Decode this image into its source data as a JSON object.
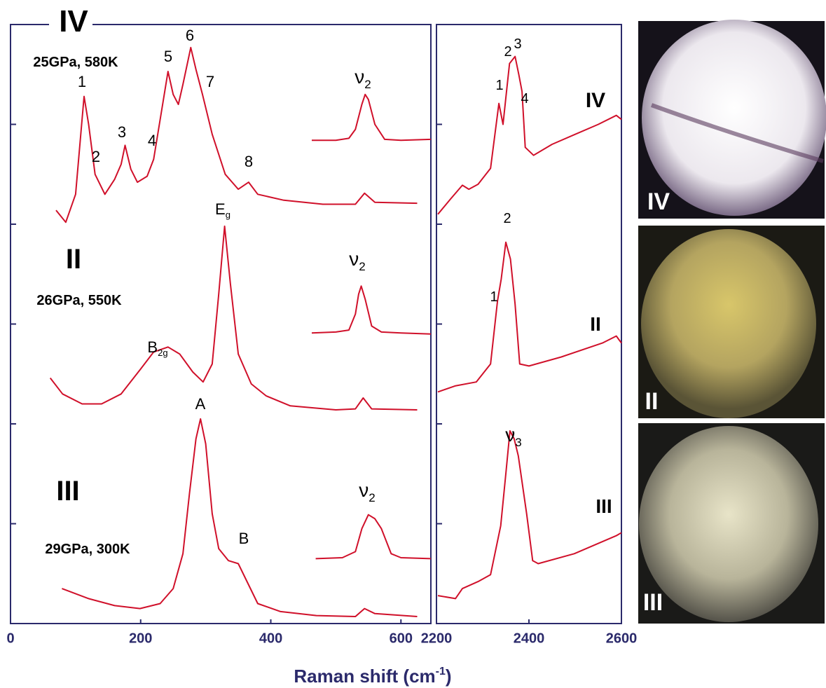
{
  "x_label": {
    "text": "Raman shift (cm",
    "sup": "-1",
    "end": ")"
  },
  "chart_data": [
    {
      "type": "line",
      "xlim": [
        0,
        646
      ],
      "xticks": [
        0,
        200,
        400,
        600
      ],
      "ylim": [
        0,
        6
      ],
      "yticks": [
        1,
        2,
        3,
        4,
        5
      ],
      "series": [
        {
          "color": "#d0102a",
          "x": [
            70,
            85,
            100,
            108,
            113,
            120,
            130,
            145,
            160,
            170,
            176,
            185,
            195,
            210,
            220,
            235,
            242,
            250,
            258,
            265,
            277,
            285,
            295,
            310,
            330,
            350,
            366,
            380,
            420,
            480,
            530,
            544,
            560,
            625
          ],
          "values": [
            4.14,
            4.02,
            4.3,
            4.9,
            5.28,
            5.0,
            4.5,
            4.3,
            4.45,
            4.6,
            4.79,
            4.55,
            4.42,
            4.48,
            4.65,
            5.25,
            5.53,
            5.3,
            5.2,
            5.4,
            5.77,
            5.55,
            5.3,
            4.9,
            4.5,
            4.35,
            4.42,
            4.3,
            4.24,
            4.2,
            4.2,
            4.31,
            4.22,
            4.21
          ]
        },
        {
          "color": "#d0102a",
          "x": [
            463,
            500,
            520,
            530,
            540,
            545,
            550,
            560,
            575,
            600,
            646
          ],
          "values": [
            4.84,
            4.84,
            4.86,
            4.95,
            5.2,
            5.3,
            5.25,
            5.0,
            4.85,
            4.84,
            4.85
          ]
        },
        {
          "color": "#d0102a",
          "x": [
            61,
            80,
            110,
            140,
            170,
            200,
            220,
            242,
            260,
            280,
            296,
            310,
            320,
            329,
            338,
            350,
            370,
            393,
            430,
            500,
            530,
            542,
            555,
            625
          ],
          "values": [
            2.46,
            2.3,
            2.2,
            2.2,
            2.3,
            2.55,
            2.72,
            2.77,
            2.7,
            2.52,
            2.42,
            2.6,
            3.3,
            3.98,
            3.4,
            2.7,
            2.4,
            2.28,
            2.18,
            2.14,
            2.15,
            2.26,
            2.15,
            2.14
          ]
        },
        {
          "color": "#d0102a",
          "x": [
            463,
            500,
            520,
            530,
            535,
            539,
            545,
            555,
            570,
            600,
            646
          ],
          "values": [
            2.91,
            2.92,
            2.94,
            3.1,
            3.3,
            3.38,
            3.25,
            2.98,
            2.92,
            2.91,
            2.9
          ]
        },
        {
          "color": "#d0102a",
          "x": [
            79,
            120,
            160,
            199,
            230,
            250,
            265,
            275,
            285,
            292,
            300,
            310,
            320,
            335,
            350,
            365,
            380,
            415,
            470,
            530,
            544,
            560,
            625
          ],
          "values": [
            0.35,
            0.25,
            0.18,
            0.15,
            0.2,
            0.35,
            0.7,
            1.3,
            1.85,
            2.05,
            1.8,
            1.1,
            0.75,
            0.63,
            0.6,
            0.4,
            0.2,
            0.12,
            0.08,
            0.07,
            0.15,
            0.1,
            0.07
          ]
        },
        {
          "color": "#d0102a",
          "x": [
            469,
            510,
            530,
            540,
            550,
            560,
            570,
            585,
            600,
            646
          ],
          "values": [
            0.65,
            0.66,
            0.72,
            0.95,
            1.09,
            1.05,
            0.95,
            0.7,
            0.66,
            0.65
          ]
        }
      ],
      "annotations": [
        {
          "text": "IV"
        },
        {
          "text": "25GPa, 580K"
        },
        {
          "text": "1"
        },
        {
          "text": "2"
        },
        {
          "text": "3"
        },
        {
          "text": "4"
        },
        {
          "text": "5"
        },
        {
          "text": "6"
        },
        {
          "text": "7"
        },
        {
          "text": "8"
        },
        {
          "base": "ν",
          "sub": "2"
        },
        {
          "base": "ν",
          "sub": "2"
        },
        {
          "base": "ν",
          "sub": "2"
        },
        {
          "text": "II"
        },
        {
          "text": "26GPa, 550K"
        },
        {
          "base": "B",
          "sub": "2g"
        },
        {
          "base": "E",
          "sub": "g"
        },
        {
          "text": "III"
        },
        {
          "text": "29GPa, 300K"
        },
        {
          "text": "A"
        },
        {
          "text": "B"
        }
      ]
    },
    {
      "type": "line",
      "xlim": [
        2200,
        2600
      ],
      "xticks": [
        2200,
        2400,
        2600
      ],
      "ylim": [
        0,
        6
      ],
      "yticks": [
        1,
        2,
        3,
        4,
        5
      ],
      "series": [
        {
          "color": "#d0102a",
          "x": [
            2203,
            2230,
            2256,
            2270,
            2290,
            2317,
            2335,
            2344,
            2352,
            2358,
            2370,
            2378,
            2385,
            2392,
            2410,
            2450,
            2500,
            2550,
            2589,
            2600
          ],
          "values": [
            4.1,
            4.25,
            4.39,
            4.35,
            4.4,
            4.56,
            5.21,
            5.0,
            5.35,
            5.61,
            5.68,
            5.5,
            5.33,
            4.77,
            4.69,
            4.8,
            4.9,
            5.0,
            5.09,
            5.05
          ]
        },
        {
          "color": "#d0102a",
          "x": [
            2203,
            2240,
            2286,
            2317,
            2332,
            2340,
            2350,
            2360,
            2370,
            2380,
            2400,
            2470,
            2559,
            2589,
            2600
          ],
          "values": [
            2.32,
            2.38,
            2.42,
            2.6,
            3.23,
            3.45,
            3.82,
            3.65,
            3.2,
            2.6,
            2.58,
            2.67,
            2.81,
            2.88,
            2.81
          ]
        },
        {
          "color": "#d0102a",
          "x": [
            2203,
            2241,
            2256,
            2290,
            2317,
            2339,
            2350,
            2359,
            2368,
            2377,
            2395,
            2408,
            2420,
            2498,
            2589,
            2600
          ],
          "values": [
            0.28,
            0.25,
            0.35,
            0.42,
            0.49,
            0.98,
            1.5,
            1.93,
            1.85,
            1.68,
            1.1,
            0.63,
            0.6,
            0.7,
            0.88,
            0.91
          ]
        }
      ],
      "annotations": [
        {
          "text": "1"
        },
        {
          "text": "2"
        },
        {
          "text": "3"
        },
        {
          "text": "4"
        },
        {
          "text": "IV"
        },
        {
          "text": "2"
        },
        {
          "text": "1"
        },
        {
          "text": "II"
        },
        {
          "base": "ν",
          "sub": "3"
        },
        {
          "text": "III"
        }
      ]
    }
  ],
  "photos": [
    {
      "label": "IV"
    },
    {
      "label": "II"
    },
    {
      "label": "III"
    }
  ]
}
